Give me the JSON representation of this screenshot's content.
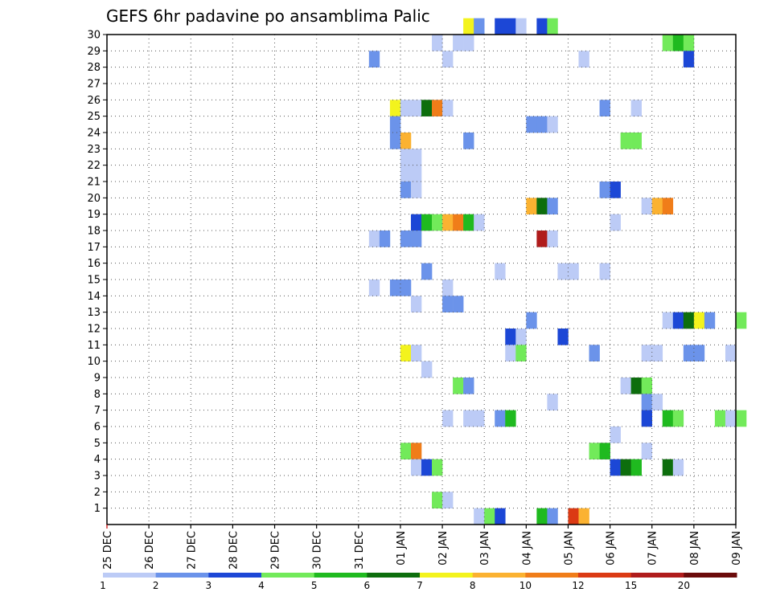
{
  "chart_data": {
    "type": "heatmap",
    "title": "GEFS 6hr padavine po ansamblima Palic",
    "x_tick_labels": [
      "25 DEC",
      "26 DEC",
      "27 DEC",
      "28 DEC",
      "29 DEC",
      "30 DEC",
      "31 DEC",
      "01 JAN",
      "02 JAN",
      "03 JAN",
      "04 JAN",
      "05 JAN",
      "06 JAN",
      "07 JAN",
      "08 JAN",
      "09 JAN"
    ],
    "y_tick_labels": [
      "1",
      "2",
      "3",
      "4",
      "5",
      "6",
      "7",
      "8",
      "9",
      "10",
      "11",
      "12",
      "13",
      "14",
      "15",
      "16",
      "17",
      "18",
      "19",
      "20",
      "21",
      "22",
      "23",
      "24",
      "25",
      "26",
      "27",
      "28",
      "29",
      "30"
    ],
    "x_range_days": [
      0,
      15
    ],
    "y_range": [
      0,
      30
    ],
    "time_step_hours": 6,
    "grid": true,
    "colorbar": {
      "placement": "bottom",
      "levels": [
        "1",
        "2",
        "3",
        "4",
        "5",
        "6",
        "7",
        "8",
        "10",
        "12",
        "15",
        "20"
      ],
      "colors": [
        "#bccbf6",
        "#6b93ea",
        "#1c47d6",
        "#72ea5a",
        "#1fba1f",
        "#0d6e0d",
        "#f3f31d",
        "#fbb231",
        "#f07d19",
        "#db3a14",
        "#b01c1c",
        "#6b0b0b"
      ]
    },
    "cells": [
      {
        "member": 30,
        "step": 34,
        "category": 6
      },
      {
        "member": 30,
        "step": 35,
        "category": 1
      },
      {
        "member": 30,
        "step": 37,
        "category": 2
      },
      {
        "member": 30,
        "step": 38,
        "category": 2
      },
      {
        "member": 30,
        "step": 39,
        "category": 0
      },
      {
        "member": 30,
        "step": 41,
        "category": 2
      },
      {
        "member": 30,
        "step": 42,
        "category": 3
      },
      {
        "member": 29,
        "step": 31,
        "category": 0
      },
      {
        "member": 29,
        "step": 33,
        "category": 0
      },
      {
        "member": 29,
        "step": 34,
        "category": 0
      },
      {
        "member": 29,
        "step": 53,
        "category": 3
      },
      {
        "member": 29,
        "step": 54,
        "category": 4
      },
      {
        "member": 29,
        "step": 55,
        "category": 3
      },
      {
        "member": 28,
        "step": 25,
        "category": 1
      },
      {
        "member": 28,
        "step": 32,
        "category": 0
      },
      {
        "member": 28,
        "step": 45,
        "category": 0
      },
      {
        "member": 28,
        "step": 55,
        "category": 2
      },
      {
        "member": 25,
        "step": 27,
        "category": 6
      },
      {
        "member": 25,
        "step": 28,
        "category": 0
      },
      {
        "member": 25,
        "step": 29,
        "category": 0
      },
      {
        "member": 25,
        "step": 30,
        "category": 5
      },
      {
        "member": 25,
        "step": 31,
        "category": 8
      },
      {
        "member": 25,
        "step": 32,
        "category": 0
      },
      {
        "member": 25,
        "step": 47,
        "category": 1
      },
      {
        "member": 25,
        "step": 50,
        "category": 0
      },
      {
        "member": 24,
        "step": 27,
        "category": 1
      },
      {
        "member": 24,
        "step": 40,
        "category": 1
      },
      {
        "member": 24,
        "step": 41,
        "category": 1
      },
      {
        "member": 24,
        "step": 42,
        "category": 0
      },
      {
        "member": 23,
        "step": 27,
        "category": 1
      },
      {
        "member": 23,
        "step": 28,
        "category": 7
      },
      {
        "member": 23,
        "step": 34,
        "category": 1
      },
      {
        "member": 23,
        "step": 49,
        "category": 3
      },
      {
        "member": 23,
        "step": 50,
        "category": 3
      },
      {
        "member": 22,
        "step": 28,
        "category": 0
      },
      {
        "member": 22,
        "step": 29,
        "category": 0
      },
      {
        "member": 21,
        "step": 28,
        "category": 0
      },
      {
        "member": 21,
        "step": 29,
        "category": 0
      },
      {
        "member": 20,
        "step": 28,
        "category": 1
      },
      {
        "member": 20,
        "step": 29,
        "category": 0
      },
      {
        "member": 20,
        "step": 47,
        "category": 1
      },
      {
        "member": 20,
        "step": 48,
        "category": 2
      },
      {
        "member": 19,
        "step": 40,
        "category": 7
      },
      {
        "member": 19,
        "step": 41,
        "category": 5
      },
      {
        "member": 19,
        "step": 42,
        "category": 1
      },
      {
        "member": 19,
        "step": 51,
        "category": 0
      },
      {
        "member": 19,
        "step": 52,
        "category": 7
      },
      {
        "member": 19,
        "step": 53,
        "category": 8
      },
      {
        "member": 18,
        "step": 29,
        "category": 2
      },
      {
        "member": 18,
        "step": 30,
        "category": 4
      },
      {
        "member": 18,
        "step": 31,
        "category": 3
      },
      {
        "member": 18,
        "step": 32,
        "category": 7
      },
      {
        "member": 18,
        "step": 33,
        "category": 8
      },
      {
        "member": 18,
        "step": 34,
        "category": 4
      },
      {
        "member": 18,
        "step": 35,
        "category": 0
      },
      {
        "member": 18,
        "step": 48,
        "category": 0
      },
      {
        "member": 17,
        "step": 25,
        "category": 0
      },
      {
        "member": 17,
        "step": 26,
        "category": 1
      },
      {
        "member": 17,
        "step": 28,
        "category": 1
      },
      {
        "member": 17,
        "step": 29,
        "category": 1
      },
      {
        "member": 17,
        "step": 41,
        "category": 10
      },
      {
        "member": 17,
        "step": 42,
        "category": 0
      },
      {
        "member": 15,
        "step": 30,
        "category": 1
      },
      {
        "member": 15,
        "step": 37,
        "category": 0
      },
      {
        "member": 15,
        "step": 43,
        "category": 0
      },
      {
        "member": 15,
        "step": 44,
        "category": 0
      },
      {
        "member": 15,
        "step": 47,
        "category": 0
      },
      {
        "member": 14,
        "step": 25,
        "category": 0
      },
      {
        "member": 14,
        "step": 27,
        "category": 1
      },
      {
        "member": 14,
        "step": 28,
        "category": 1
      },
      {
        "member": 14,
        "step": 32,
        "category": 0
      },
      {
        "member": 13,
        "step": 29,
        "category": 0
      },
      {
        "member": 13,
        "step": 32,
        "category": 1
      },
      {
        "member": 13,
        "step": 33,
        "category": 1
      },
      {
        "member": 12,
        "step": 40,
        "category": 1
      },
      {
        "member": 12,
        "step": 53,
        "category": 0
      },
      {
        "member": 12,
        "step": 54,
        "category": 2
      },
      {
        "member": 12,
        "step": 55,
        "category": 5
      },
      {
        "member": 12,
        "step": 56,
        "category": 6
      },
      {
        "member": 12,
        "step": 57,
        "category": 1
      },
      {
        "member": 12,
        "step": 60,
        "category": 3
      },
      {
        "member": 11,
        "step": 38,
        "category": 2
      },
      {
        "member": 11,
        "step": 39,
        "category": 0
      },
      {
        "member": 11,
        "step": 43,
        "category": 2
      },
      {
        "member": 10,
        "step": 28,
        "category": 6
      },
      {
        "member": 10,
        "step": 29,
        "category": 0
      },
      {
        "member": 10,
        "step": 38,
        "category": 0
      },
      {
        "member": 10,
        "step": 39,
        "category": 3
      },
      {
        "member": 10,
        "step": 46,
        "category": 1
      },
      {
        "member": 10,
        "step": 51,
        "category": 0
      },
      {
        "member": 10,
        "step": 52,
        "category": 0
      },
      {
        "member": 10,
        "step": 55,
        "category": 1
      },
      {
        "member": 10,
        "step": 56,
        "category": 1
      },
      {
        "member": 10,
        "step": 59,
        "category": 0
      },
      {
        "member": 9,
        "step": 30,
        "category": 0
      },
      {
        "member": 8,
        "step": 33,
        "category": 3
      },
      {
        "member": 8,
        "step": 34,
        "category": 1
      },
      {
        "member": 8,
        "step": 49,
        "category": 0
      },
      {
        "member": 8,
        "step": 50,
        "category": 5
      },
      {
        "member": 8,
        "step": 51,
        "category": 3
      },
      {
        "member": 7,
        "step": 42,
        "category": 0
      },
      {
        "member": 7,
        "step": 51,
        "category": 1
      },
      {
        "member": 7,
        "step": 52,
        "category": 0
      },
      {
        "member": 6,
        "step": 32,
        "category": 0
      },
      {
        "member": 6,
        "step": 34,
        "category": 0
      },
      {
        "member": 6,
        "step": 35,
        "category": 0
      },
      {
        "member": 6,
        "step": 37,
        "category": 1
      },
      {
        "member": 6,
        "step": 38,
        "category": 4
      },
      {
        "member": 6,
        "step": 51,
        "category": 2
      },
      {
        "member": 6,
        "step": 53,
        "category": 4
      },
      {
        "member": 6,
        "step": 54,
        "category": 3
      },
      {
        "member": 6,
        "step": 58,
        "category": 3
      },
      {
        "member": 6,
        "step": 59,
        "category": 0
      },
      {
        "member": 6,
        "step": 60,
        "category": 3
      },
      {
        "member": 5,
        "step": 48,
        "category": 0
      },
      {
        "member": 4,
        "step": 28,
        "category": 3
      },
      {
        "member": 4,
        "step": 29,
        "category": 8
      },
      {
        "member": 4,
        "step": 46,
        "category": 3
      },
      {
        "member": 4,
        "step": 47,
        "category": 4
      },
      {
        "member": 4,
        "step": 51,
        "category": 0
      },
      {
        "member": 3,
        "step": 29,
        "category": 0
      },
      {
        "member": 3,
        "step": 30,
        "category": 2
      },
      {
        "member": 3,
        "step": 31,
        "category": 3
      },
      {
        "member": 3,
        "step": 48,
        "category": 2
      },
      {
        "member": 3,
        "step": 49,
        "category": 5
      },
      {
        "member": 3,
        "step": 50,
        "category": 4
      },
      {
        "member": 3,
        "step": 53,
        "category": 5
      },
      {
        "member": 3,
        "step": 54,
        "category": 0
      },
      {
        "member": 1,
        "step": 31,
        "category": 3
      },
      {
        "member": 1,
        "step": 32,
        "category": 0
      },
      {
        "member": 0,
        "step": 35,
        "category": 0
      },
      {
        "member": 0,
        "step": 36,
        "category": 3
      },
      {
        "member": 0,
        "step": 37,
        "category": 2
      },
      {
        "member": 0,
        "step": 41,
        "category": 4
      },
      {
        "member": 0,
        "step": 42,
        "category": 1
      },
      {
        "member": 0,
        "step": 44,
        "category": 9
      },
      {
        "member": 0,
        "step": 45,
        "category": 7
      }
    ]
  }
}
